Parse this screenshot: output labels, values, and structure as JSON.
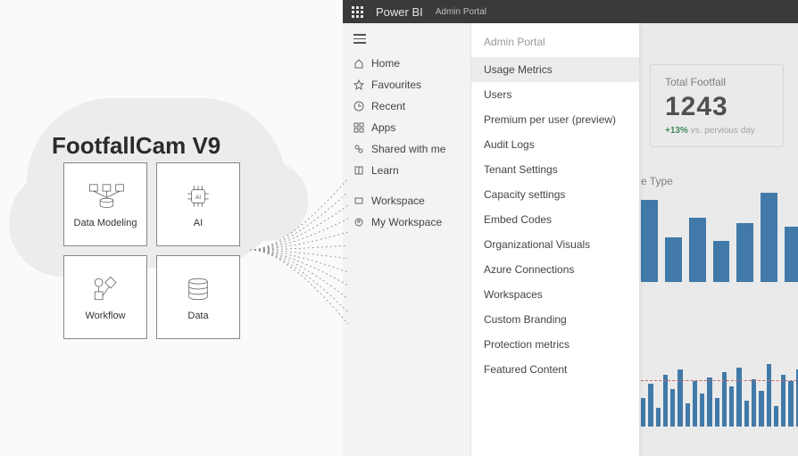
{
  "footfallcam": {
    "title": "FootfallCam V9",
    "tiles": [
      {
        "label": "Data Modeling"
      },
      {
        "label": "AI"
      },
      {
        "label": "Workflow"
      },
      {
        "label": "Data"
      }
    ]
  },
  "powerbi": {
    "brand": "Power BI",
    "breadcrumb": "Admin Portal",
    "sidebar": {
      "items": [
        {
          "label": "Home"
        },
        {
          "label": "Favourites"
        },
        {
          "label": "Recent"
        },
        {
          "label": "Apps"
        },
        {
          "label": "Shared with me"
        },
        {
          "label": "Learn"
        }
      ],
      "secondary": [
        {
          "label": "Workspace"
        },
        {
          "label": "My Workspace"
        }
      ]
    },
    "admin": {
      "title": "Admin Portal",
      "items": [
        "Usage Metrics",
        "Users",
        "Premium per user (preview)",
        "Audit Logs",
        "Tenant Settings",
        "Capacity settings",
        "Embed Codes",
        "Organizational Visuals",
        "Azure Connections",
        "Workspaces",
        "Custom Branding",
        "Protection metrics",
        "Featured Content"
      ],
      "selected_index": 0
    },
    "dashboard": {
      "kpi": {
        "title": "Total Footfall",
        "value": "1243",
        "delta_pct": "+13%",
        "delta_label": "vs. pervious day"
      },
      "chart1": {
        "type": "bar",
        "title": "e Type",
        "bar_color": "#1365a8",
        "values": [
          92,
          50,
          72,
          46,
          66,
          100,
          62
        ]
      },
      "chart2": {
        "type": "bar",
        "bar_color": "#1365a8",
        "threshold_color": "#d24a4a",
        "values": [
          30,
          45,
          20,
          55,
          40,
          60,
          25,
          48,
          35,
          52,
          30,
          58,
          42,
          62,
          27,
          50,
          38,
          66,
          22,
          55,
          48,
          60,
          33,
          58,
          45,
          64,
          28
        ]
      }
    }
  },
  "colors": {
    "cloud": "#ececec",
    "pbi_topbar": "#3a3a3a",
    "sidebar_bg": "#f3f3f1",
    "bar_blue": "#1365a8"
  }
}
